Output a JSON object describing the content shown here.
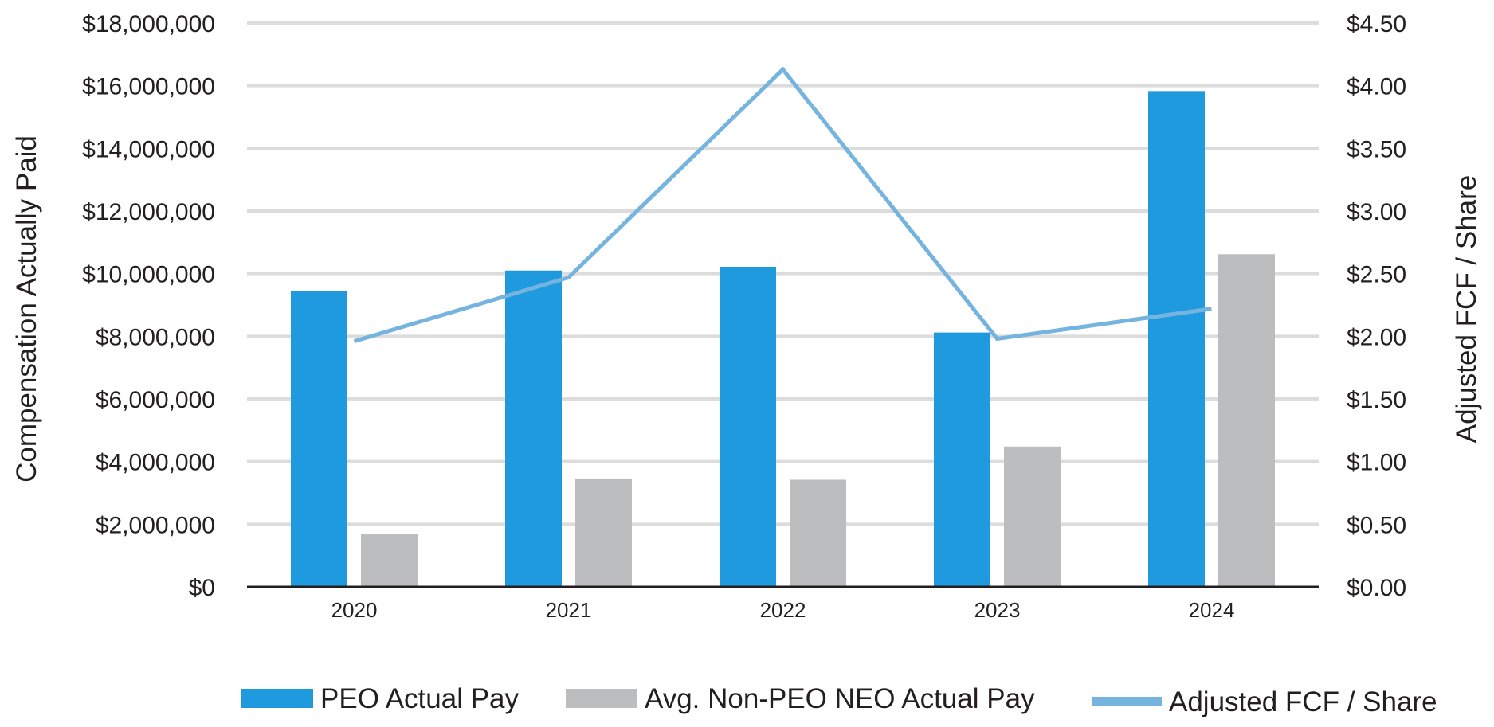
{
  "chart_data": {
    "type": "bar",
    "categories": [
      "2020",
      "2021",
      "2022",
      "2023",
      "2024"
    ],
    "series": [
      {
        "name": "PEO Actual Pay",
        "type": "bar",
        "axis": "left",
        "color": "#1f9ade",
        "values": [
          9450000,
          10100000,
          10220000,
          8120000,
          15830000
        ]
      },
      {
        "name": "Avg. Non-PEO NEO Actual Pay",
        "type": "bar",
        "axis": "left",
        "color": "#bcbdbf",
        "values": [
          1680000,
          3460000,
          3420000,
          4480000,
          10620000
        ]
      },
      {
        "name": "Adjusted FCF / Share",
        "type": "line",
        "axis": "right",
        "color": "#74b4df",
        "values": [
          1.96,
          2.47,
          4.13,
          1.98,
          2.22
        ]
      }
    ],
    "ylabel": "Compensation Actually Paid",
    "y2label": "Adjusted FCF / Share",
    "ylim": [
      0,
      18000000
    ],
    "y2lim": [
      0,
      4.5
    ],
    "yticks": [
      "$0",
      "$2,000,000",
      "$4,000,000",
      "$6,000,000",
      "$8,000,000",
      "$10,000,000",
      "$12,000,000",
      "$14,000,000",
      "$16,000,000",
      "$18,000,000"
    ],
    "y2ticks": [
      "$0.00",
      "$0.50",
      "$1.00",
      "$1.50",
      "$2.00",
      "$2.50",
      "$3.00",
      "$3.50",
      "$4.00",
      "$4.50"
    ],
    "grid": true,
    "legend_position": "bottom"
  }
}
